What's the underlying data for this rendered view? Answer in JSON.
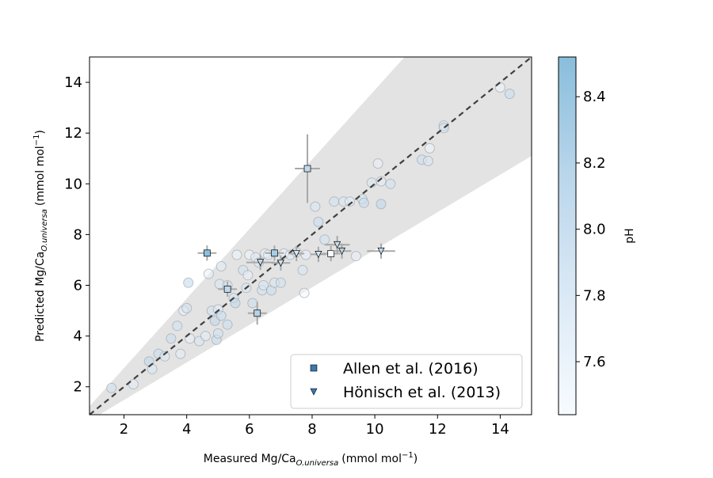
{
  "chart_data": {
    "type": "scatter",
    "xlabel": {
      "main": "Measured Mg/Ca",
      "sub": "O.universa",
      "unit_pre": "(mmol mol",
      "unit_sup": "−1",
      "unit_post": ")"
    },
    "ylabel": {
      "main": "Predicted Mg/Ca",
      "sub": "O.universa",
      "unit_pre": "(mmol mol",
      "unit_sup": "−1",
      "unit_post": ")"
    },
    "xlim": [
      0.9,
      15.0
    ],
    "ylim": [
      0.9,
      15.0
    ],
    "xticks": [
      2,
      4,
      6,
      8,
      10,
      12,
      14
    ],
    "yticks": [
      2,
      4,
      6,
      8,
      10,
      12,
      14
    ],
    "one_to_one_line": true,
    "prediction_band": {
      "lower_slope": 0.74,
      "upper_slope": 1.37
    },
    "colorbar": {
      "label": "pH",
      "range": [
        7.44,
        8.52
      ],
      "ticks": [
        7.6,
        7.8,
        8.0,
        8.2,
        8.4
      ],
      "colors": [
        "#f7fbff",
        "#dbe9f6",
        "#bad6eb",
        "#89bedc"
      ]
    },
    "legend": {
      "placement": "lower-right",
      "entries": [
        "Allen et al. (2016)",
        "Hönisch et al. (2013)"
      ]
    },
    "background_points": [
      [
        1.6,
        1.95,
        7.9
      ],
      [
        2.3,
        2.1,
        7.7
      ],
      [
        2.8,
        3.0,
        8.1
      ],
      [
        2.9,
        2.7,
        7.8
      ],
      [
        3.1,
        3.3,
        8.0
      ],
      [
        3.3,
        3.2,
        7.8
      ],
      [
        3.5,
        3.9,
        8.0
      ],
      [
        3.7,
        4.4,
        7.9
      ],
      [
        3.8,
        3.3,
        7.7
      ],
      [
        3.9,
        5.0,
        7.6
      ],
      [
        4.0,
        5.1,
        7.9
      ],
      [
        4.05,
        6.1,
        8.1
      ],
      [
        4.1,
        3.9,
        7.6
      ],
      [
        4.4,
        3.8,
        7.8
      ],
      [
        4.6,
        4.0,
        7.7
      ],
      [
        4.7,
        6.45,
        7.6
      ],
      [
        4.8,
        5.0,
        7.9
      ],
      [
        4.9,
        4.6,
        8.1
      ],
      [
        4.95,
        3.85,
        8.0
      ],
      [
        5.0,
        4.1,
        7.9
      ],
      [
        5.0,
        5.05,
        7.7
      ],
      [
        5.05,
        6.05,
        7.8
      ],
      [
        5.1,
        4.8,
        8.0
      ],
      [
        5.1,
        6.75,
        7.7
      ],
      [
        5.3,
        6.0,
        7.9
      ],
      [
        5.3,
        4.45,
        8.0
      ],
      [
        5.5,
        5.5,
        7.9
      ],
      [
        5.55,
        5.3,
        8.1
      ],
      [
        5.6,
        7.2,
        7.5
      ],
      [
        5.8,
        6.6,
        7.9
      ],
      [
        5.9,
        5.9,
        7.8
      ],
      [
        5.95,
        6.4,
        7.6
      ],
      [
        6.0,
        7.2,
        7.5
      ],
      [
        6.1,
        5.3,
        8.0
      ],
      [
        6.2,
        7.1,
        7.7
      ],
      [
        6.3,
        6.9,
        7.8
      ],
      [
        6.4,
        5.8,
        7.9
      ],
      [
        6.45,
        6.0,
        7.8
      ],
      [
        6.5,
        7.25,
        7.6
      ],
      [
        6.6,
        7.2,
        7.7
      ],
      [
        6.7,
        5.8,
        8.0
      ],
      [
        6.8,
        6.1,
        7.8
      ],
      [
        7.0,
        6.1,
        7.9
      ],
      [
        7.1,
        7.25,
        7.6
      ],
      [
        7.3,
        7.2,
        7.7
      ],
      [
        7.5,
        7.3,
        7.8
      ],
      [
        7.7,
        6.6,
        7.8
      ],
      [
        7.75,
        5.7,
        7.5
      ],
      [
        7.8,
        7.2,
        7.6
      ],
      [
        8.1,
        9.1,
        7.8
      ],
      [
        8.2,
        8.5,
        8.0
      ],
      [
        8.4,
        7.8,
        7.9
      ],
      [
        8.7,
        9.3,
        7.9
      ],
      [
        9.0,
        9.3,
        7.8
      ],
      [
        9.2,
        9.3,
        7.7
      ],
      [
        9.4,
        7.15,
        7.6
      ],
      [
        9.6,
        9.4,
        7.9
      ],
      [
        9.65,
        9.25,
        8.0
      ],
      [
        9.9,
        10.05,
        7.8
      ],
      [
        10.1,
        10.8,
        7.6
      ],
      [
        10.2,
        10.1,
        7.7
      ],
      [
        10.2,
        9.2,
        8.1
      ],
      [
        10.5,
        10.0,
        7.9
      ],
      [
        11.5,
        10.95,
        8.0
      ],
      [
        11.7,
        10.9,
        7.8
      ],
      [
        11.75,
        11.4,
        7.5
      ],
      [
        12.2,
        12.3,
        7.8
      ],
      [
        12.2,
        12.2,
        7.9
      ],
      [
        14.0,
        13.8,
        7.5
      ],
      [
        14.3,
        13.55,
        8.0
      ]
    ],
    "series": [
      {
        "name": "Allen et al. (2016)",
        "marker": "square",
        "points": [
          {
            "x": 4.65,
            "y": 7.27,
            "xerr": 0.3,
            "yerr": 0.3,
            "ph": 8.5
          },
          {
            "x": 5.3,
            "y": 5.85,
            "xerr": 0.3,
            "yerr": 0.3,
            "ph": 8.1
          },
          {
            "x": 6.25,
            "y": 4.9,
            "xerr": 0.3,
            "yerr": 0.45,
            "ph": 8.2
          },
          {
            "x": 6.8,
            "y": 7.27,
            "xerr": 0.3,
            "yerr": 0.3,
            "ph": 8.3
          },
          {
            "x": 7.85,
            "y": 10.6,
            "xerr": 0.4,
            "yerr": 1.35,
            "ph": 8.1
          },
          {
            "x": 8.6,
            "y": 7.25,
            "xerr": 0.3,
            "yerr": 0.3,
            "ph": 7.45
          }
        ]
      },
      {
        "name": "Hönisch et al. (2013)",
        "marker": "triangle",
        "points": [
          {
            "x": 6.35,
            "y": 6.9,
            "xerr": 0.45,
            "yerr": 0.3,
            "ph": 8.1
          },
          {
            "x": 7.0,
            "y": 6.88,
            "xerr": 0.3,
            "yerr": 0.3,
            "ph": 8.0
          },
          {
            "x": 7.5,
            "y": 7.25,
            "xerr": 0.25,
            "yerr": 0.3,
            "ph": 7.8
          },
          {
            "x": 8.2,
            "y": 7.22,
            "xerr": 0.25,
            "yerr": 0.3,
            "ph": 7.9
          },
          {
            "x": 8.8,
            "y": 7.6,
            "xerr": 0.4,
            "yerr": 0.35,
            "ph": 8.0
          },
          {
            "x": 8.95,
            "y": 7.35,
            "xerr": 0.3,
            "yerr": 0.3,
            "ph": 8.2
          },
          {
            "x": 10.2,
            "y": 7.35,
            "xerr": 0.45,
            "yerr": 0.3,
            "ph": 8.1
          }
        ]
      }
    ]
  }
}
